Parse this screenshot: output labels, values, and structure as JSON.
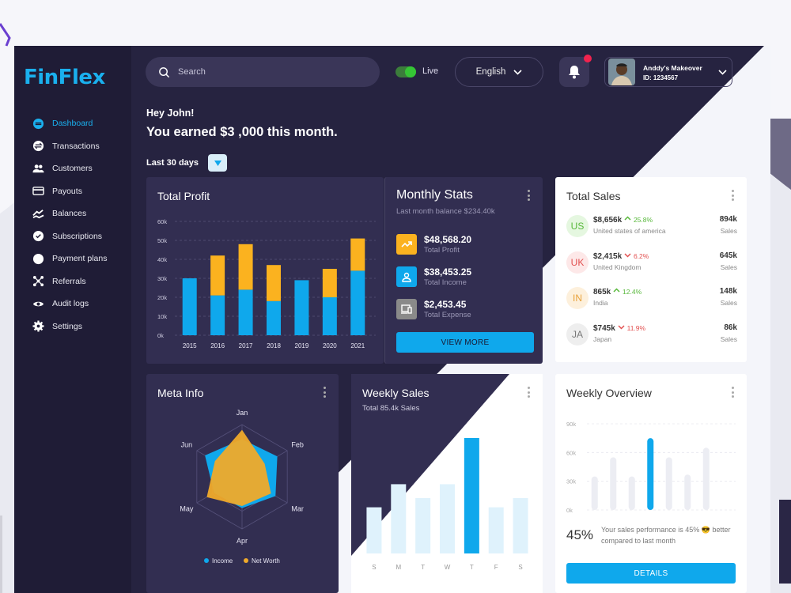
{
  "app": {
    "logo": "FinFlex"
  },
  "sidebar": {
    "items": [
      {
        "label": "Dashboard",
        "icon": "dashboard-icon",
        "active": true
      },
      {
        "label": "Transactions",
        "icon": "transactions-icon"
      },
      {
        "label": "Customers",
        "icon": "customers-icon"
      },
      {
        "label": "Payouts",
        "icon": "card-icon"
      },
      {
        "label": "Balances",
        "icon": "balances-icon"
      },
      {
        "label": "Subscriptions",
        "icon": "check-icon"
      },
      {
        "label": "Payment plans",
        "icon": "circle-icon"
      },
      {
        "label": "Referrals",
        "icon": "referrals-icon"
      },
      {
        "label": "Audit logs",
        "icon": "eye-icon"
      },
      {
        "label": "Settings",
        "icon": "gear-icon"
      }
    ]
  },
  "header": {
    "search_placeholder": "Search",
    "live_label": "Live",
    "live_on": true,
    "language": "English",
    "profile_name": "Anddy's Makeover",
    "profile_id": "ID: 1234567"
  },
  "greeting": {
    "hello": "Hey John!",
    "earned": "You earned $3 ,000 this month.",
    "period": "Last 30 days"
  },
  "colors": {
    "accent": "#0fa8ec",
    "orange": "#fbb21f",
    "dark_card": "#322e51",
    "bg": "#262340"
  },
  "total_profit": {
    "title": "Total Profit"
  },
  "monthly_stats": {
    "title": "Monthly Stats",
    "subtitle": "Last month balance $234.40k",
    "items": [
      {
        "value": "$48,568.20",
        "label": "Total Profit",
        "icon": "trend-icon",
        "color": "#fbb21f"
      },
      {
        "value": "$38,453.25",
        "label": "Total Income",
        "icon": "user-icon",
        "color": "#0fa8ec"
      },
      {
        "value": "$2,453.45",
        "label": "Total Expense",
        "icon": "devices-icon",
        "color": "#8a8a8a"
      }
    ],
    "button": "VIEW MORE"
  },
  "total_sales": {
    "title": "Total Sales",
    "rows": [
      {
        "code": "US",
        "amount": "$8,656k",
        "pct": "25.8%",
        "up": true,
        "country": "United states of america",
        "count": "894k",
        "unit": "Sales",
        "bg": "#e5f7e0",
        "fg": "#58b83b"
      },
      {
        "code": "UK",
        "amount": "$2,415k",
        "pct": "6.2%",
        "up": false,
        "country": "United Kingdom",
        "count": "645k",
        "unit": "Sales",
        "bg": "#fde8e8",
        "fg": "#e25050"
      },
      {
        "code": "IN",
        "amount": "865k",
        "pct": "12.4%",
        "up": true,
        "country": "India",
        "count": "148k",
        "unit": "Sales",
        "bg": "#fdf0dc",
        "fg": "#e8a23a"
      },
      {
        "code": "JA",
        "amount": "$745k",
        "pct": "11.9%",
        "up": false,
        "country": "Japan",
        "count": "86k",
        "unit": "Sales",
        "bg": "#eeeeee",
        "fg": "#777"
      }
    ]
  },
  "meta_info": {
    "title": "Meta Info"
  },
  "weekly_sales": {
    "title": "Weekly Sales",
    "subtitle": "Total 85.4k Sales"
  },
  "weekly_overview": {
    "title": "Weekly Overview",
    "percent": "45%",
    "message": "Your sales performance is 45% 😎 better compared to last month",
    "button": "DETAILS"
  },
  "chart_data": [
    {
      "type": "bar",
      "chart": "total_profit",
      "categories": [
        "2015",
        "2016",
        "2017",
        "2018",
        "2019",
        "2020",
        "2021"
      ],
      "yticks": [
        "0k",
        "10k",
        "20k",
        "30k",
        "40k",
        "50k",
        "60k"
      ],
      "ylim": [
        0,
        60
      ],
      "series": [
        {
          "values": [
            30,
            21,
            24,
            18,
            29,
            20,
            34
          ]
        },
        {
          "values": [
            0,
            21,
            24,
            19,
            0,
            15,
            17
          ]
        }
      ],
      "stacked": true
    },
    {
      "type": "radar",
      "chart": "meta_info",
      "axes": [
        "Jan",
        "Feb",
        "Mar",
        "Apr",
        "May",
        "Jun"
      ],
      "series": [
        {
          "name": "Income",
          "values": [
            0.72,
            0.78,
            0.74,
            0.6,
            0.62,
            0.82
          ]
        },
        {
          "name": "Net Worth",
          "values": [
            0.9,
            0.5,
            0.64,
            0.56,
            0.78,
            0.6
          ]
        }
      ]
    },
    {
      "type": "bar",
      "chart": "weekly_sales",
      "categories": [
        "S",
        "M",
        "T",
        "W",
        "T",
        "F",
        "S"
      ],
      "values": [
        40,
        60,
        48,
        60,
        100,
        40,
        48
      ],
      "highlight": 4
    },
    {
      "type": "bar",
      "chart": "weekly_overview",
      "categories": [
        "",
        "",
        "",
        "",
        "",
        "",
        "",
        ""
      ],
      "yticks": [
        "0k",
        "30k",
        "60k",
        "90k"
      ],
      "ylim": [
        0,
        90
      ],
      "values": [
        35,
        55,
        35,
        75,
        55,
        37,
        65,
        0
      ],
      "highlight": 3
    }
  ]
}
